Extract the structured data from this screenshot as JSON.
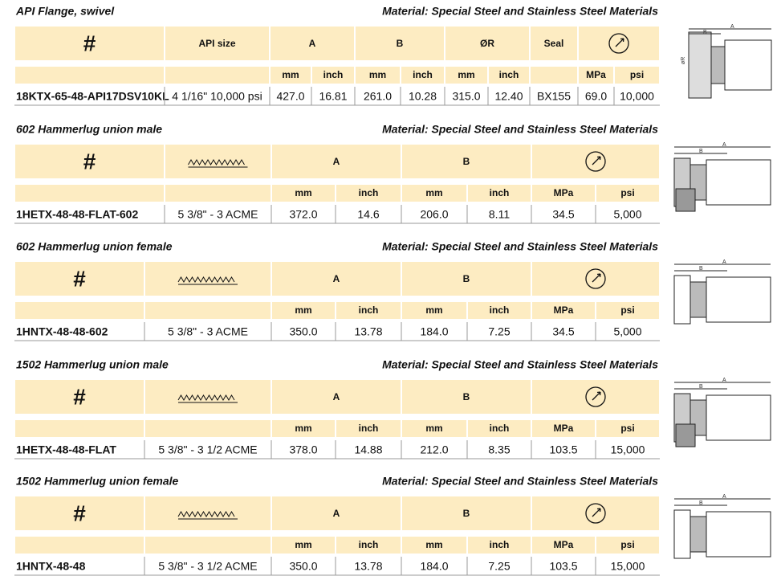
{
  "sections": [
    {
      "title": "API Flange, swivel",
      "material": "Material: Special Steel and Stainless Steel Materials",
      "header": [
        "#",
        "API size",
        "A",
        "B",
        "ØR",
        "Seal"
      ],
      "units": [
        "mm",
        "inch",
        "mm",
        "inch",
        "mm",
        "inch",
        "MPa",
        "psi"
      ],
      "row": [
        "18KTX-65-48-API17DSV10KL",
        "4 1/16\" 10,000 psi",
        "427.0",
        "16.81",
        "261.0",
        "10.28",
        "315.0",
        "12.40",
        "BX155",
        "69.0",
        "10,000"
      ],
      "drawing_labels": [
        "A",
        "B",
        "øR"
      ]
    },
    {
      "title": "602 Hammerlug union male",
      "material": "Material: Special Steel and Stainless Steel Materials",
      "header": [
        "#",
        "A",
        "B"
      ],
      "units": [
        "mm",
        "inch",
        "mm",
        "inch",
        "MPa",
        "psi"
      ],
      "row": [
        "1HETX-48-48-FLAT-602",
        "5 3/8\" - 3 ACME",
        "372.0",
        "14.6",
        "206.0",
        "8.11",
        "34.5",
        "5,000"
      ],
      "drawing_labels": [
        "A",
        "B"
      ]
    },
    {
      "title": "602 Hammerlug union female",
      "material": "Material: Special Steel and Stainless Steel Materials",
      "header": [
        "#",
        "A",
        "B"
      ],
      "units": [
        "mm",
        "inch",
        "mm",
        "inch",
        "MPa",
        "psi"
      ],
      "row": [
        "1HNTX-48-48-602",
        "5 3/8\" - 3 ACME",
        "350.0",
        "13.78",
        "184.0",
        "7.25",
        "34.5",
        "5,000"
      ],
      "drawing_labels": [
        "A",
        "B"
      ]
    },
    {
      "title": "1502 Hammerlug union male",
      "material": "Material: Special Steel and Stainless Steel Materials",
      "header": [
        "#",
        "A",
        "B"
      ],
      "units": [
        "mm",
        "inch",
        "mm",
        "inch",
        "MPa",
        "psi"
      ],
      "row": [
        "1HETX-48-48-FLAT",
        "5 3/8\" - 3 1/2 ACME",
        "378.0",
        "14.88",
        "212.0",
        "8.35",
        "103.5",
        "15,000"
      ],
      "drawing_labels": [
        "A",
        "B"
      ]
    },
    {
      "title": "1502 Hammerlug union female",
      "material": "Material: Special Steel and Stainless Steel Materials",
      "header": [
        "#",
        "A",
        "B"
      ],
      "units": [
        "mm",
        "inch",
        "mm",
        "inch",
        "MPa",
        "psi"
      ],
      "row": [
        "1HNTX-48-48",
        "5 3/8\" - 3 1/2 ACME",
        "350.0",
        "13.78",
        "184.0",
        "7.25",
        "103.5",
        "15,000"
      ],
      "drawing_labels": [
        "A",
        "B"
      ]
    }
  ]
}
